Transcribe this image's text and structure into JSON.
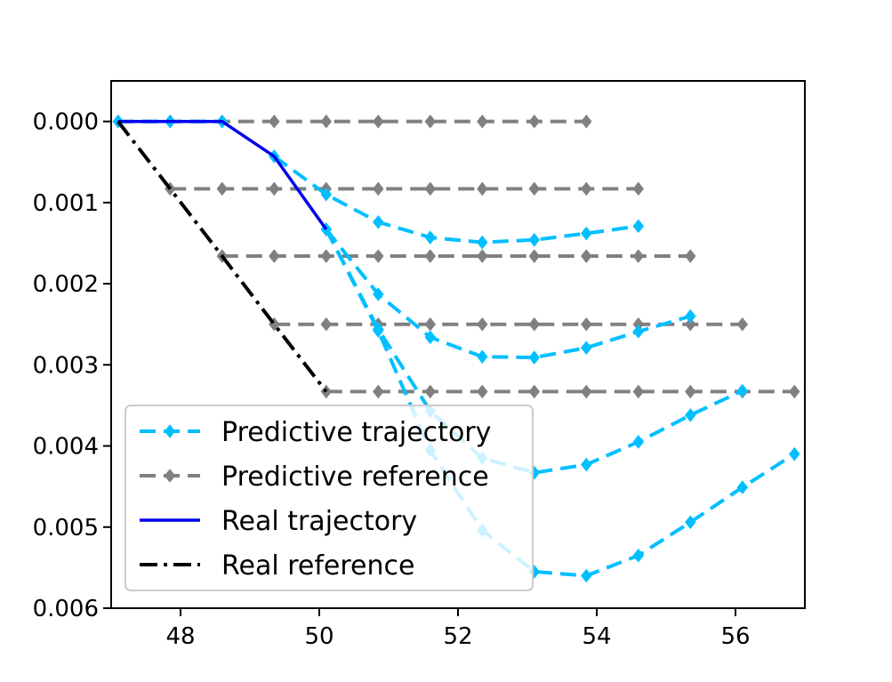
{
  "chart_data": {
    "type": "line",
    "title": "",
    "xlabel": "",
    "ylabel": "",
    "xlim": [
      47,
      57
    ],
    "ylim": [
      -0.006,
      0.0005
    ],
    "x_ticks": [
      48,
      50,
      52,
      54,
      56
    ],
    "x_tick_labels": [
      "48",
      "50",
      "52",
      "54",
      "56"
    ],
    "y_ticks": [
      0,
      -0.001,
      -0.002,
      -0.003,
      -0.004,
      -0.005,
      -0.006
    ],
    "y_tick_labels": [
      "0.000",
      "0.001",
      "0.002",
      "0.003",
      "0.004",
      "0.005",
      "0.006"
    ],
    "grid": false,
    "legend_position": "lower-left",
    "legend": [
      {
        "label": "Predictive trajectory",
        "style": "pred-traj"
      },
      {
        "label": "Predictive reference",
        "style": "pred-ref"
      },
      {
        "label": "Real trajectory",
        "style": "real-traj"
      },
      {
        "label": "Real reference",
        "style": "real-ref"
      }
    ],
    "colors": {
      "predictive_trajectory": "#00bfff",
      "predictive_reference": "#808080",
      "real_trajectory": "#0000ee",
      "real_reference": "#000000"
    },
    "predictive_references": [
      {
        "x": [
          47.1,
          47.85,
          48.6,
          49.35,
          50.1,
          50.85,
          51.6,
          52.35,
          53.1,
          53.85
        ],
        "y": [
          0,
          0,
          0,
          0,
          0,
          0,
          0,
          0,
          0,
          0
        ]
      },
      {
        "x": [
          47.85,
          48.6,
          49.35,
          50.1,
          50.85,
          51.6,
          52.35,
          53.1,
          53.85,
          54.6
        ],
        "y": [
          -0.00083,
          -0.00083,
          -0.00083,
          -0.00083,
          -0.00083,
          -0.00083,
          -0.00083,
          -0.00083,
          -0.00083,
          -0.00083
        ]
      },
      {
        "x": [
          48.6,
          49.35,
          50.1,
          50.85,
          51.6,
          52.35,
          53.1,
          53.85,
          54.6,
          55.35
        ],
        "y": [
          -0.00166,
          -0.00166,
          -0.00166,
          -0.00166,
          -0.00166,
          -0.00166,
          -0.00166,
          -0.00166,
          -0.00166,
          -0.00166
        ]
      },
      {
        "x": [
          49.35,
          50.1,
          50.85,
          51.6,
          52.35,
          53.1,
          53.85,
          54.6,
          55.35,
          56.1
        ],
        "y": [
          -0.0025,
          -0.0025,
          -0.0025,
          -0.0025,
          -0.0025,
          -0.0025,
          -0.0025,
          -0.0025,
          -0.0025,
          -0.0025
        ]
      },
      {
        "x": [
          50.1,
          50.85,
          51.6,
          52.35,
          53.1,
          53.85,
          54.6,
          55.35,
          56.1,
          56.85
        ],
        "y": [
          -0.00333,
          -0.00333,
          -0.00333,
          -0.00333,
          -0.00333,
          -0.00333,
          -0.00333,
          -0.00333,
          -0.00333,
          -0.00333
        ]
      }
    ],
    "predictive_trajectories": [
      {
        "x": [
          47.1,
          47.85,
          48.6
        ],
        "y": [
          0,
          0,
          0
        ]
      },
      {
        "x": [
          49.35,
          50.1,
          50.85,
          51.6,
          52.35,
          53.1,
          53.85,
          54.6
        ],
        "y": [
          -0.00043,
          -0.0009,
          -0.00124,
          -0.00143,
          -0.00149,
          -0.00146,
          -0.00138,
          -0.00129
        ]
      },
      {
        "x": [
          50.1,
          50.85,
          51.6,
          52.35,
          53.1,
          53.85,
          54.6,
          55.35
        ],
        "y": [
          -0.00133,
          -0.00213,
          -0.00266,
          -0.0029,
          -0.00291,
          -0.00279,
          -0.00259,
          -0.0024
        ]
      },
      {
        "x": [
          50.1,
          50.85,
          51.6,
          52.35,
          53.1,
          53.85,
          54.6,
          55.35,
          56.1
        ],
        "y": [
          -0.00133,
          -0.00256,
          -0.00357,
          -0.00415,
          -0.00433,
          -0.00423,
          -0.00395,
          -0.00362,
          -0.00332
        ]
      },
      {
        "x": [
          50.1,
          50.85,
          51.6,
          52.35,
          53.1,
          53.85,
          54.6,
          55.35,
          56.1,
          56.85
        ],
        "y": [
          -0.00133,
          -0.00258,
          -0.00405,
          -0.00504,
          -0.00555,
          -0.0056,
          -0.00535,
          -0.00494,
          -0.00451,
          -0.0041
        ]
      }
    ],
    "real_trajectory": {
      "x": [
        47.1,
        47.85,
        48.6,
        49.35,
        50.1
      ],
      "y": [
        0,
        0,
        0,
        -0.00043,
        -0.00133
      ]
    },
    "real_reference": {
      "x": [
        47.1,
        47.85,
        48.6,
        49.35,
        50.1
      ],
      "y": [
        0,
        -0.00083,
        -0.00166,
        -0.0025,
        -0.00333
      ]
    }
  }
}
